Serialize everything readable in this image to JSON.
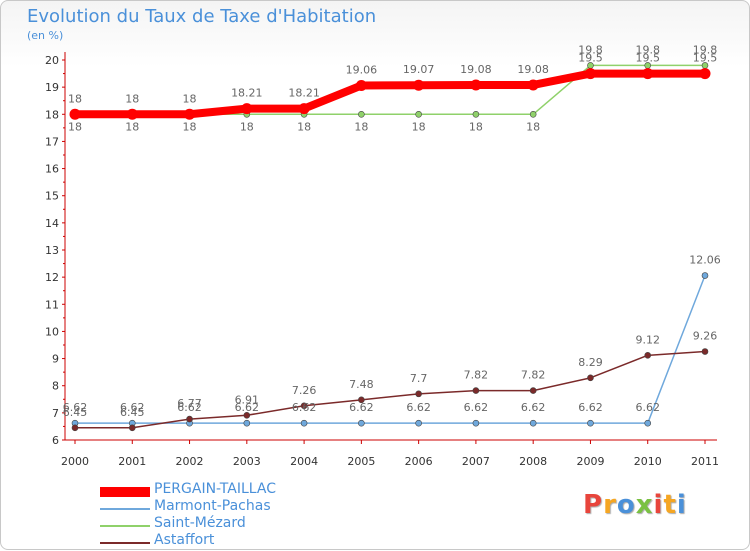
{
  "title": "Evolution du Taux de Taxe d'Habitation",
  "unit": "(en %)",
  "logo": "Proxiti",
  "chart_data": {
    "type": "line",
    "title": "Evolution du Taux de Taxe d'Habitation",
    "ylabel": "(en %)",
    "xlabel": "",
    "x": [
      "2000",
      "2001",
      "2002",
      "2003",
      "2004",
      "2005",
      "2006",
      "2007",
      "2008",
      "2009",
      "2010",
      "2011"
    ],
    "ylim": [
      6,
      20
    ],
    "yticks": [
      6,
      7,
      8,
      9,
      10,
      11,
      12,
      13,
      14,
      15,
      16,
      17,
      18,
      19,
      20
    ],
    "grid": false,
    "legend_position": "bottom-left",
    "series": [
      {
        "name": "PERGAIN-TAILLAC",
        "color": "#ff0000",
        "values": [
          18,
          18,
          18,
          18.21,
          18.21,
          19.06,
          19.07,
          19.08,
          19.08,
          19.5,
          19.5,
          19.5
        ],
        "labels": [
          "18",
          "18",
          "18",
          "18.21",
          "18.21",
          "19.06",
          "19.07",
          "19.08",
          "19.08",
          "19.5",
          "19.5",
          "19.5"
        ]
      },
      {
        "name": "Marmont-Pachas",
        "color": "#6fa8dc",
        "values": [
          6.62,
          6.62,
          6.62,
          6.62,
          6.62,
          6.62,
          6.62,
          6.62,
          6.62,
          6.62,
          6.62,
          12.06
        ],
        "labels": [
          "6.62",
          "6.62",
          "6.62",
          "6.62",
          "6.62",
          "6.62",
          "6.62",
          "6.62",
          "6.62",
          "6.62",
          "6.62",
          "12.06"
        ]
      },
      {
        "name": "Saint-Mézard",
        "color": "#8fd16a",
        "values": [
          18,
          18,
          18,
          18,
          18,
          18,
          18,
          18,
          18,
          19.8,
          19.8,
          19.8
        ],
        "labels": [
          "18",
          "18",
          "18",
          "18",
          "18",
          "18",
          "18",
          "18",
          "18",
          "19.8",
          "19.8",
          "19.8"
        ]
      },
      {
        "name": "Astaffort",
        "color": "#7b2a2a",
        "values": [
          6.45,
          6.45,
          6.77,
          6.91,
          7.26,
          7.48,
          7.7,
          7.82,
          7.82,
          8.29,
          9.12,
          9.26
        ],
        "labels": [
          "6.45",
          "6.45",
          "6.77",
          "6.91",
          "7.26",
          "7.48",
          "7.7",
          "7.82",
          "7.82",
          "8.29",
          "9.12",
          "9.26"
        ]
      }
    ]
  }
}
